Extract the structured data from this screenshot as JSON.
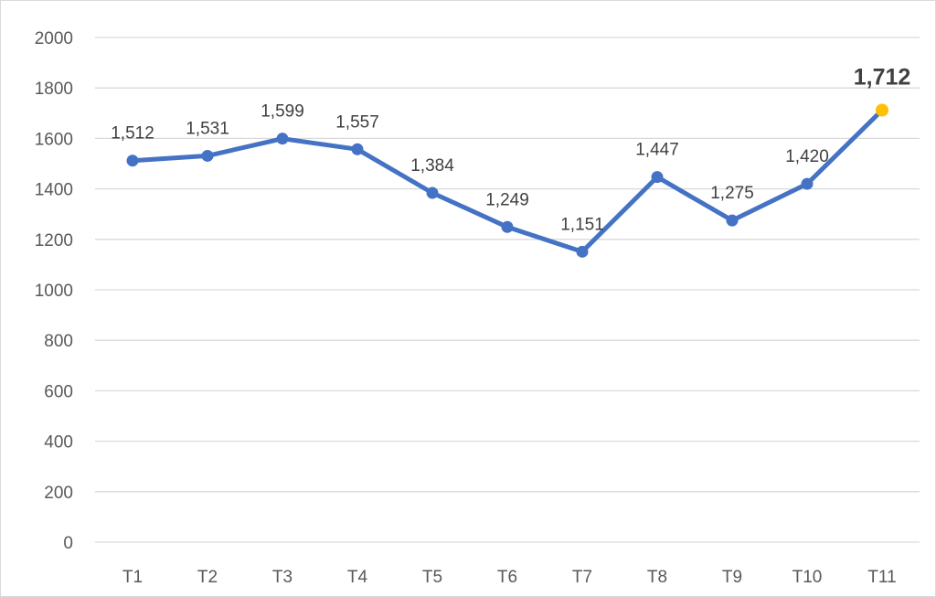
{
  "chart_data": {
    "type": "line",
    "categories": [
      "T1",
      "T2",
      "T3",
      "T4",
      "T5",
      "T6",
      "T7",
      "T8",
      "T9",
      "T10",
      "T11"
    ],
    "series": [
      {
        "values": [
          1512,
          1531,
          1599,
          1557,
          1384,
          1249,
          1151,
          1447,
          1275,
          1420,
          1712
        ],
        "labels": [
          "1,512",
          "1,531",
          "1,599",
          "1,557",
          "1,384",
          "1,249",
          "1,151",
          "1,447",
          "1,275",
          "1,420",
          "1,712"
        ]
      }
    ],
    "title": "",
    "xlabel": "",
    "ylabel": "",
    "ylim": [
      0,
      2000
    ],
    "yticks": [
      "0",
      "200",
      "400",
      "600",
      "800",
      "1000",
      "1200",
      "1400",
      "1600",
      "1800",
      "2000"
    ],
    "grid": true,
    "legend": "none",
    "highlight_index": 10,
    "colors": {
      "line": "#4472c4",
      "highlight": "#ffc000",
      "grid": "#d9d9d9"
    }
  }
}
